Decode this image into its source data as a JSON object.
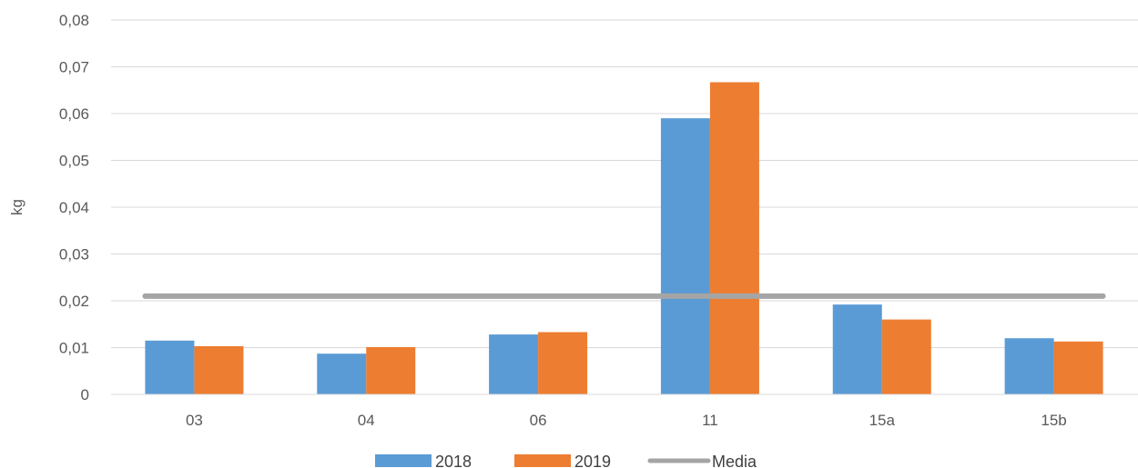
{
  "chart_data": {
    "type": "bar",
    "title": "",
    "xlabel": "",
    "ylabel": "kg",
    "ylim": [
      0,
      0.08
    ],
    "y_ticks": [
      0,
      0.01,
      0.02,
      0.03,
      0.04,
      0.05,
      0.06,
      0.07,
      0.08
    ],
    "y_tick_labels": [
      "0",
      "0,01",
      "0,02",
      "0,03",
      "0,04",
      "0,05",
      "0,06",
      "0,07",
      "0,08"
    ],
    "categories": [
      "03",
      "04",
      "06",
      "11",
      "15a",
      "15b"
    ],
    "series": [
      {
        "name": "2018",
        "type": "bar",
        "color": "#5b9bd5",
        "values": [
          0.0115,
          0.0087,
          0.0128,
          0.059,
          0.0192,
          0.012
        ]
      },
      {
        "name": "2019",
        "type": "bar",
        "color": "#ed7d31",
        "values": [
          0.0103,
          0.0101,
          0.0133,
          0.0667,
          0.016,
          0.0113
        ]
      },
      {
        "name": "Media",
        "type": "line",
        "color": "#a5a5a5",
        "values": [
          0.021,
          0.021,
          0.021,
          0.021,
          0.021,
          0.021
        ]
      }
    ],
    "grid": true,
    "legend": "bottom"
  }
}
